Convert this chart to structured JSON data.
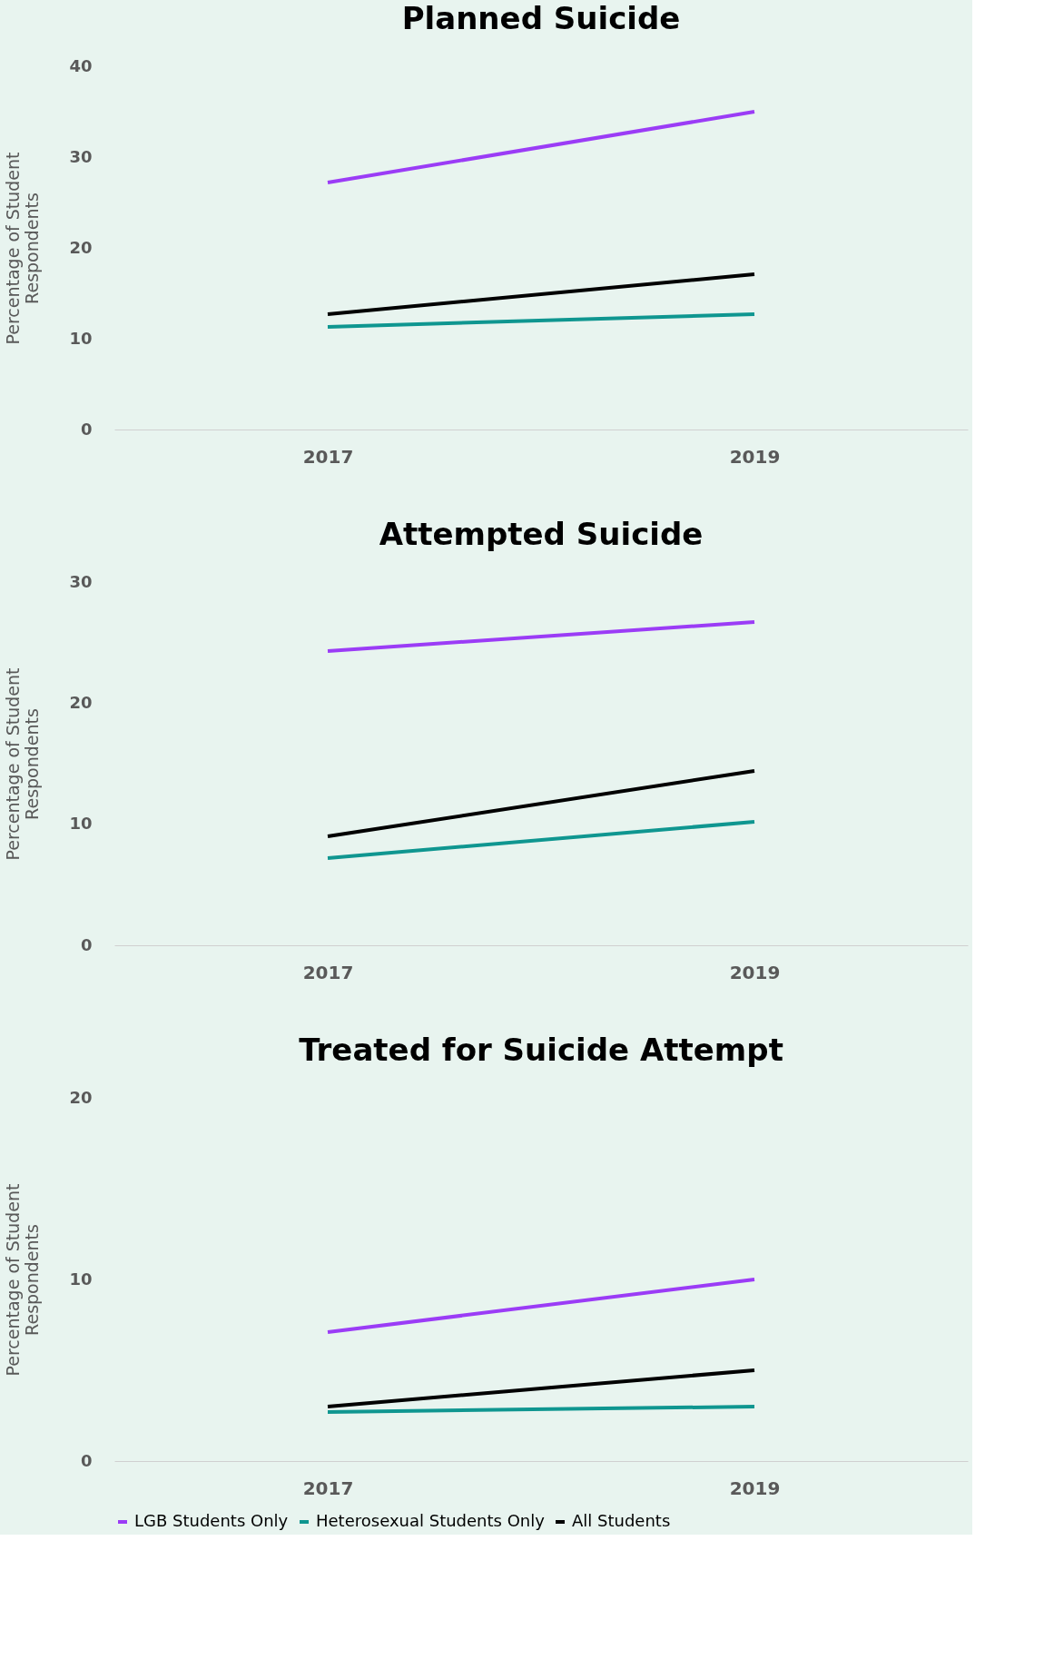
{
  "chart_data": [
    {
      "type": "line",
      "title": "Planned Suicide",
      "ylabel": "Percentage of  Student Respondents",
      "categories": [
        "2017",
        "2019"
      ],
      "ylim": [
        0,
        40
      ],
      "yticks": [
        0,
        10,
        20,
        30,
        40
      ],
      "grid": false,
      "series": [
        {
          "color": "#9b3cf6",
          "values": [
            27.2,
            35.0
          ]
        },
        {
          "color": "#0f9690",
          "values": [
            11.3,
            12.7
          ]
        },
        {
          "color": "#000000",
          "values": [
            12.7,
            17.1
          ]
        }
      ]
    },
    {
      "type": "line",
      "title": "Attempted Suicide",
      "ylabel": "Percentage of  Student Respondents",
      "categories": [
        "2017",
        "2019"
      ],
      "ylim": [
        0,
        30
      ],
      "yticks": [
        0,
        10,
        20,
        30
      ],
      "grid": false,
      "series": [
        {
          "color": "#9b3cf6",
          "values": [
            24.3,
            26.7
          ]
        },
        {
          "color": "#0f9690",
          "values": [
            7.2,
            10.2
          ]
        },
        {
          "color": "#000000",
          "values": [
            9.0,
            14.4
          ]
        }
      ]
    },
    {
      "type": "line",
      "title": "Treated for Suicide Attempt",
      "ylabel": "Percentage of  Student Respondents",
      "categories": [
        "2017",
        "2019"
      ],
      "ylim": [
        0,
        20
      ],
      "yticks": [
        0,
        10,
        20
      ],
      "grid": false,
      "legend": "bottom",
      "series": [
        {
          "name": "LGB Students Only",
          "color": "#9b3cf6",
          "values": [
            7.1,
            10.0
          ]
        },
        {
          "name": "Heterosexual Students Only",
          "color": "#0f9690",
          "values": [
            2.7,
            3.0
          ]
        },
        {
          "name": "All Students",
          "color": "#000000",
          "values": [
            3.0,
            5.0
          ]
        }
      ]
    }
  ]
}
